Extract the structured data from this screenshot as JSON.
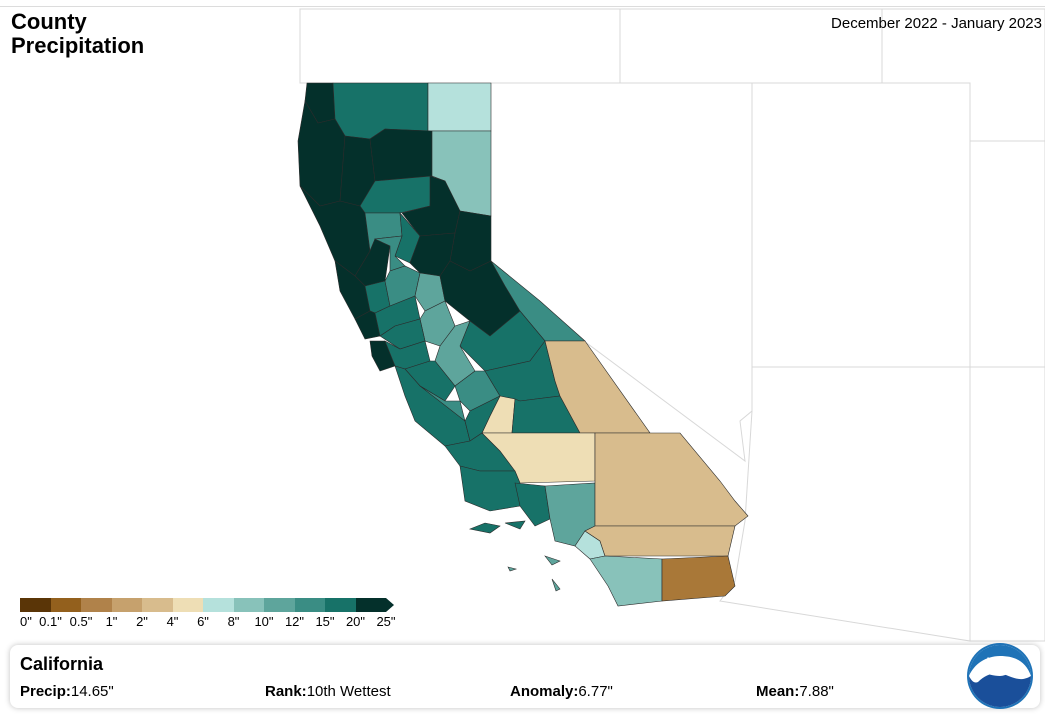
{
  "map": {
    "title_line1": "County",
    "title_line2": "Precipitation",
    "date_range": "December 2022 - January 2023"
  },
  "legend": {
    "colors": [
      "#5a3507",
      "#93601d",
      "#b0824a",
      "#c6a16d",
      "#d8bc8d",
      "#eedeb5",
      "#b5e1dc",
      "#88c2ba",
      "#5ea59c",
      "#3a8d84",
      "#177268",
      "#04302b"
    ],
    "labels": [
      "0\"",
      "0.1\"",
      "0.5\"",
      "1\"",
      "2\"",
      "4\"",
      "6\"",
      "8\"",
      "10\"",
      "12\"",
      "15\"",
      "20\"",
      "25\""
    ]
  },
  "info": {
    "state": "California",
    "precip_label": "Precip:",
    "precip_value": "14.65\"",
    "rank_label": "Rank:",
    "rank_value": "10th Wettest",
    "anomaly_label": "Anomaly:",
    "anomaly_value": "6.77\"",
    "mean_label": "Mean:",
    "mean_value": "7.88\""
  },
  "logo": {
    "text": "NOAA"
  }
}
